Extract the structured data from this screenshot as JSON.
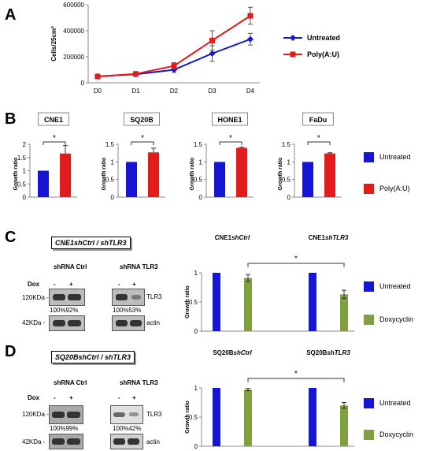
{
  "panels": {
    "A": "A",
    "B": "B",
    "C": "C",
    "D": "D"
  },
  "chart_data": [
    {
      "id": "A",
      "type": "line",
      "x": [
        "D0",
        "D1",
        "D2",
        "D3",
        "D4"
      ],
      "ylabel": "Cells/25cm²",
      "yticks": [
        "0",
        "200000",
        "400000",
        "600000"
      ],
      "ylim": [
        0,
        600000
      ],
      "series": [
        {
          "name": "Untreated",
          "color": "#1515d6",
          "values": [
            50000,
            65000,
            100000,
            225000,
            335000
          ],
          "err": [
            8000,
            8000,
            20000,
            60000,
            45000
          ]
        },
        {
          "name": "Poly(A:U)",
          "color": "#e21b1b",
          "values": [
            48000,
            68000,
            130000,
            325000,
            515000
          ],
          "err": [
            6000,
            10000,
            25000,
            75000,
            65000
          ]
        }
      ],
      "legend": "right"
    },
    {
      "id": "B1",
      "type": "bar",
      "title": "CNE1",
      "categories": [
        "Untreated",
        "Poly(A:U)"
      ],
      "values": [
        1.0,
        1.65
      ],
      "err": [
        0,
        0.3
      ],
      "ylabel": "Growth ratio",
      "yticks": [
        "0",
        "0.5",
        "1",
        "1.5",
        "2"
      ],
      "ylim": [
        0,
        2
      ],
      "sig": "*"
    },
    {
      "id": "B2",
      "type": "bar",
      "title": "SQ20B",
      "categories": [
        "Untreated",
        "Poly(A:U)"
      ],
      "values": [
        1.0,
        1.27
      ],
      "err": [
        0,
        0.12
      ],
      "ylabel": "Growth ratio",
      "yticks": [
        "0",
        "0.5",
        "1",
        "1.5"
      ],
      "ylim": [
        0,
        1.5
      ],
      "sig": "*"
    },
    {
      "id": "B3",
      "type": "bar",
      "title": "HONE1",
      "categories": [
        "Untreated",
        "Poly(A:U)"
      ],
      "values": [
        1.0,
        1.4
      ],
      "err": [
        0,
        0.02
      ],
      "ylabel": "Growth ratio",
      "yticks": [
        "0",
        "0.5",
        "1",
        "1.5"
      ],
      "ylim": [
        0,
        1.5
      ],
      "sig": "*"
    },
    {
      "id": "B4",
      "type": "bar",
      "title": "FaDu",
      "categories": [
        "Untreated",
        "Poly(A:U)"
      ],
      "values": [
        1.0,
        1.24
      ],
      "err": [
        0,
        0.02
      ],
      "ylabel": "Growth ratio",
      "yticks": [
        "0",
        "0.5",
        "1",
        "1.5"
      ],
      "ylim": [
        0,
        1.5
      ],
      "sig": "*"
    },
    {
      "id": "C",
      "type": "bar",
      "groups": [
        "CNE1shCtrl",
        "CNE1shTLR3"
      ],
      "values": [
        [
          1.0,
          0.91
        ],
        [
          1.0,
          0.63
        ]
      ],
      "err": [
        [
          0,
          0.06
        ],
        [
          0,
          0.07
        ]
      ],
      "ylabel": "Growth ratio",
      "yticks": [
        "0",
        "0.5",
        "1"
      ],
      "ylim": [
        0,
        1
      ],
      "sig": "*"
    },
    {
      "id": "D",
      "type": "bar",
      "groups": [
        "SQ20BshCtrl",
        "SQ20BshTLR3"
      ],
      "values": [
        [
          1.0,
          0.97
        ],
        [
          1.0,
          0.7
        ]
      ],
      "err": [
        [
          0,
          0.02
        ],
        [
          0,
          0.05
        ]
      ],
      "ylabel": "Growth ratio",
      "yticks": [
        "0",
        "0.5",
        "1"
      ],
      "ylim": [
        0,
        1
      ],
      "sig": "*"
    }
  ],
  "legend_b": [
    {
      "label": "Untreated",
      "color": "#1515d6"
    },
    {
      "label": "Poly(A:U)",
      "color": "#e21b1b"
    }
  ],
  "legend_cd": [
    {
      "label": "Untreated",
      "color": "#1515d6"
    },
    {
      "label": "Doxycyclin",
      "color": "#7ea03f"
    }
  ],
  "blots": {
    "C": {
      "title_a": "CNE1shCtrl",
      "sep": " / ",
      "title_b": "shTLR3",
      "shctrl": "shRNA Ctrl",
      "shtlr3": "shRNA TLR3",
      "dox": "Dox",
      "minus": "-",
      "plus": "+",
      "kda120": "120KDa -",
      "kda42": "42KDa -",
      "tlr3": "TLR3",
      "actin": "actin",
      "pct_ctrl": "100%92%",
      "pct_tlr3": "100%53%",
      "chart_title_a": "CNE1shCtrl",
      "chart_title_b": "CNE1shTLR3"
    },
    "D": {
      "title_a": "SQ20BshCtrl",
      "sep": " / ",
      "title_b": "shTLR3",
      "shctrl": "shRNA Ctrl",
      "shtlr3": "shRNA TLR3",
      "dox": "Dox",
      "minus": "-",
      "plus": "+",
      "kda120": "120KDa -",
      "kda42": "42KDa -",
      "tlr3": "TLR3",
      "actin": "actin",
      "pct_ctrl": "100%99%",
      "pct_tlr3": "100%42%",
      "chart_title_a": "SQ20BshCtrl",
      "chart_title_b": "SQ20BshTLR3"
    }
  }
}
